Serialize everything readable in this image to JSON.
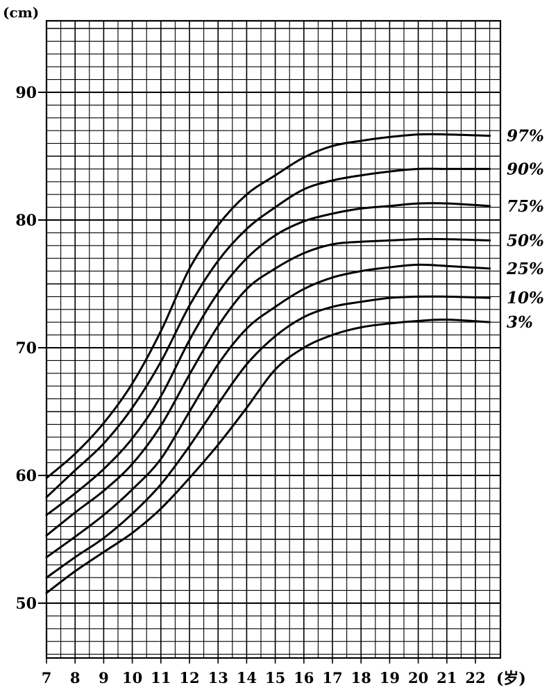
{
  "chart_data": {
    "type": "line",
    "ylabel": "(cm)",
    "xlabel": "(岁)",
    "xlim": [
      7,
      23
    ],
    "ylim": [
      45,
      96
    ],
    "x_ticks": [
      "7",
      "8",
      "9",
      "10",
      "11",
      "12",
      "13",
      "14",
      "15",
      "16",
      "17",
      "18",
      "19",
      "20",
      "21",
      "22"
    ],
    "y_ticks": [
      "50",
      "60",
      "70",
      "80",
      "90"
    ],
    "grid": "fine grid, 1 cm and 0.5 year spacing",
    "legend": "labels at right end of each curve",
    "series": [
      {
        "name": "97%",
        "x": [
          7,
          8,
          9,
          10,
          11,
          12,
          13,
          14,
          15,
          16,
          17,
          18,
          19,
          20,
          21,
          22.5
        ],
        "y": [
          59.8,
          61.7,
          64.1,
          67.2,
          71.3,
          76.2,
          79.6,
          82.0,
          83.5,
          84.9,
          85.8,
          86.2,
          86.5,
          86.7,
          86.7,
          86.6
        ]
      },
      {
        "name": "90%",
        "x": [
          7,
          8,
          9,
          10,
          11,
          12,
          13,
          14,
          15,
          16,
          17,
          18,
          19,
          20,
          21,
          22.5
        ],
        "y": [
          58.3,
          60.4,
          62.5,
          65.3,
          68.9,
          73.3,
          76.8,
          79.3,
          81.0,
          82.4,
          83.1,
          83.5,
          83.8,
          84.0,
          84.0,
          84.0
        ]
      },
      {
        "name": "75%",
        "x": [
          7,
          8,
          9,
          10,
          11,
          12,
          13,
          14,
          15,
          16,
          17,
          18,
          19,
          20,
          21,
          22.5
        ],
        "y": [
          56.9,
          58.6,
          60.5,
          62.9,
          66.2,
          70.6,
          74.3,
          77.0,
          78.8,
          79.9,
          80.5,
          80.9,
          81.1,
          81.3,
          81.3,
          81.1
        ]
      },
      {
        "name": "50%",
        "x": [
          7,
          8,
          9,
          10,
          11,
          12,
          13,
          14,
          15,
          16,
          17,
          18,
          19,
          20,
          21,
          22.5
        ],
        "y": [
          55.3,
          57.1,
          58.8,
          60.9,
          63.9,
          67.9,
          71.7,
          74.6,
          76.2,
          77.4,
          78.1,
          78.3,
          78.4,
          78.5,
          78.5,
          78.4
        ]
      },
      {
        "name": "25%",
        "x": [
          7,
          8,
          9,
          10,
          11,
          12,
          13,
          14,
          15,
          16,
          17,
          18,
          19,
          20,
          21,
          22.5
        ],
        "y": [
          53.6,
          55.2,
          56.9,
          58.9,
          61.3,
          65.0,
          68.7,
          71.5,
          73.2,
          74.6,
          75.5,
          76.0,
          76.3,
          76.5,
          76.4,
          76.2
        ]
      },
      {
        "name": "10%",
        "x": [
          7,
          8,
          9,
          10,
          11,
          12,
          13,
          14,
          15,
          16,
          17,
          18,
          19,
          20,
          21,
          22.5
        ],
        "y": [
          52.0,
          53.6,
          55.1,
          57.0,
          59.3,
          62.3,
          65.6,
          68.7,
          70.9,
          72.4,
          73.2,
          73.6,
          73.9,
          74.0,
          74.0,
          73.9
        ]
      },
      {
        "name": "3%",
        "x": [
          7,
          8,
          9,
          10,
          11,
          12,
          13,
          14,
          15,
          16,
          17,
          18,
          19,
          20,
          21,
          22.5
        ],
        "y": [
          50.8,
          52.5,
          54.0,
          55.5,
          57.4,
          59.8,
          62.4,
          65.3,
          68.3,
          70.0,
          71.0,
          71.6,
          71.9,
          72.1,
          72.2,
          72.0
        ]
      }
    ]
  },
  "colors": {
    "line": "#000000",
    "grid": "#000000",
    "background": "#ffffff"
  }
}
